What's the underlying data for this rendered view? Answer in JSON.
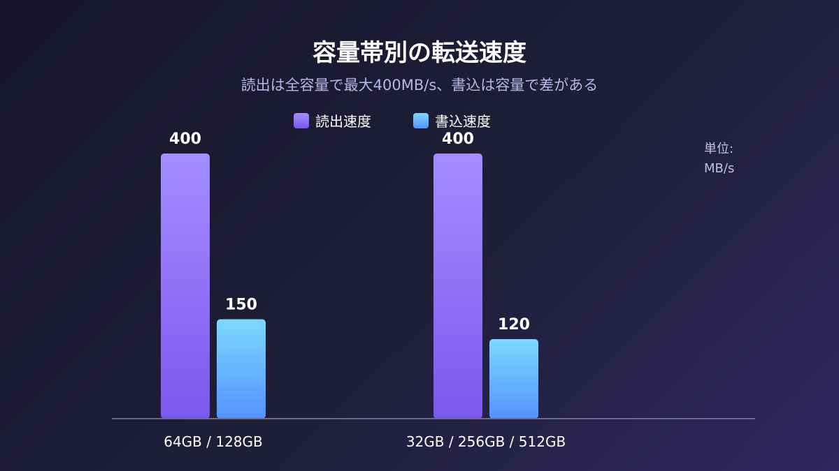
{
  "chart_data": {
    "type": "bar",
    "title": "容量帯別の転送速度",
    "subtitle": "読出は全容量で最大400MB/s、書込は容量で差がある",
    "unit_line1": "単位:",
    "unit_line2": "MB/s",
    "categories": [
      "64GB / 128GB",
      "32GB / 256GB / 512GB"
    ],
    "series": [
      {
        "name": "読出速度",
        "values": [
          400,
          400
        ],
        "color_top": "#a48dff",
        "color_bottom": "#7b58ee"
      },
      {
        "name": "書込速度",
        "values": [
          150,
          120
        ],
        "color_top": "#7dd8ff",
        "color_bottom": "#5592ff"
      }
    ],
    "ylim": [
      0,
      400
    ],
    "legend_position": "top-center",
    "grid": false
  }
}
